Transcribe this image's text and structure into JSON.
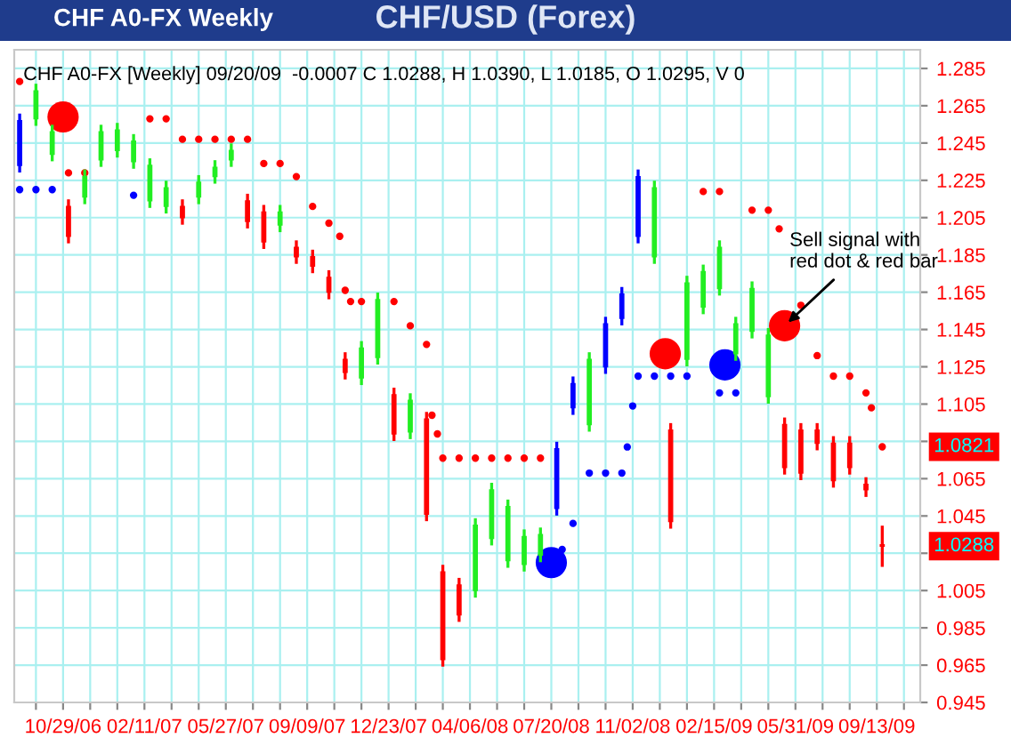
{
  "chart_data": {
    "type": "candlestick",
    "title": "CHF/USD (Forex)",
    "subtitle": "CHF A0-FX [Weekly] 09/20/09  -0.0007 C 1.0288, H 1.0390, L 1.0185, O 1.0295, V 0",
    "annotations": [
      "CHF A0-FX Weekly",
      {
        "text": "Sell signal with\nred dot & red bar",
        "x": "2009-05-17",
        "y": 1.147
      },
      {
        "text": "1.0821",
        "x": "2009-09-20",
        "y": 1.0821
      },
      {
        "text": "1.0288",
        "x": "2009-09-20",
        "y": 1.0288
      }
    ],
    "xlim": [
      "2006-08-27",
      "2009-11-08"
    ],
    "xticks": [
      {
        "value": "2006-09-24",
        "label": null
      },
      {
        "value": "2006-10-29",
        "label": "10/29/06"
      },
      {
        "value": "2006-12-03",
        "label": null
      },
      {
        "value": "2007-01-07",
        "label": null
      },
      {
        "value": "2007-02-11",
        "label": "02/11/07"
      },
      {
        "value": "2007-03-18",
        "label": null
      },
      {
        "value": "2007-04-22",
        "label": null
      },
      {
        "value": "2007-05-27",
        "label": "05/27/07"
      },
      {
        "value": "2007-07-01",
        "label": null
      },
      {
        "value": "2007-08-05",
        "label": null
      },
      {
        "value": "2007-09-09",
        "label": "09/09/07"
      },
      {
        "value": "2007-10-14",
        "label": null
      },
      {
        "value": "2007-11-18",
        "label": null
      },
      {
        "value": "2007-12-23",
        "label": "12/23/07"
      },
      {
        "value": "2008-01-27",
        "label": null
      },
      {
        "value": "2008-03-02",
        "label": null
      },
      {
        "value": "2008-04-06",
        "label": "04/06/08"
      },
      {
        "value": "2008-05-11",
        "label": null
      },
      {
        "value": "2008-06-15",
        "label": null
      },
      {
        "value": "2008-07-20",
        "label": "07/20/08"
      },
      {
        "value": "2008-08-24",
        "label": null
      },
      {
        "value": "2008-09-28",
        "label": null
      },
      {
        "value": "2008-11-02",
        "label": "11/02/08"
      },
      {
        "value": "2008-12-07",
        "label": null
      },
      {
        "value": "2009-01-11",
        "label": null
      },
      {
        "value": "2009-02-15",
        "label": "02/15/09"
      },
      {
        "value": "2009-03-22",
        "label": null
      },
      {
        "value": "2009-04-26",
        "label": null
      },
      {
        "value": "2009-05-31",
        "label": "05/31/09"
      },
      {
        "value": "2009-07-05",
        "label": null
      },
      {
        "value": "2009-08-09",
        "label": null
      },
      {
        "value": "2009-09-13",
        "label": "09/13/09"
      },
      {
        "value": "2009-10-18",
        "label": null
      }
    ],
    "ylim": [
      0.945,
      1.295
    ],
    "yticks": [
      0.945,
      0.965,
      0.985,
      1.005,
      {
        "value": 1.025,
        "label": null
      },
      1.045,
      1.065,
      {
        "value": 1.085,
        "label": null
      },
      1.105,
      1.125,
      1.145,
      1.165,
      1.185,
      1.205,
      1.225,
      1.245,
      1.265,
      1.285
    ],
    "grid": true,
    "series": [
      {
        "type": "candlestick",
        "color": "#ff0000",
        "x": [
          "2009-09-20",
          "2009-08-30",
          "2009-08-09",
          "2009-07-19",
          "2009-06-28",
          "2009-06-07",
          "2009-05-17",
          "2008-12-21",
          "2008-03-23",
          "2008-03-02",
          "2008-02-10",
          "2007-12-30",
          "2007-10-28",
          "2007-10-07",
          "2007-09-16",
          "2007-08-26",
          "2007-07-15",
          "2007-06-24",
          "2007-04-01",
          "2006-11-05"
        ],
        "ohlc": [
          [
            1.0295,
            1.039,
            1.0185,
            1.0288
          ],
          [
            1.062,
            1.065,
            1.056,
            1.059
          ],
          [
            1.084,
            1.087,
            1.068,
            1.071
          ],
          [
            1.084,
            1.087,
            1.061,
            1.064
          ],
          [
            1.091,
            1.094,
            1.081,
            1.084
          ],
          [
            1.091,
            1.094,
            1.065,
            1.068
          ],
          [
            1.094,
            1.097,
            1.068,
            1.071
          ],
          [
            1.091,
            1.094,
            1.039,
            1.042
          ],
          [
            1.008,
            1.011,
            0.989,
            0.992
          ],
          [
            1.015,
            1.018,
            0.965,
            0.968
          ],
          [
            1.097,
            1.1,
            1.043,
            1.046
          ],
          [
            1.11,
            1.113,
            1.086,
            1.089
          ],
          [
            1.129,
            1.132,
            1.119,
            1.122
          ],
          [
            1.173,
            1.176,
            1.162,
            1.165
          ],
          [
            1.184,
            1.187,
            1.176,
            1.179
          ],
          [
            1.189,
            1.192,
            1.181,
            1.184
          ],
          [
            1.208,
            1.211,
            1.189,
            1.192
          ],
          [
            1.214,
            1.217,
            1.2,
            1.203
          ],
          [
            1.211,
            1.214,
            1.202,
            1.205
          ],
          [
            1.211,
            1.214,
            1.192,
            1.195
          ]
        ]
      },
      {
        "type": "candlestick",
        "color": "#22ee22",
        "x": [
          "2009-04-26",
          "2009-04-05",
          "2009-03-15",
          "2009-02-22",
          "2009-02-01",
          "2009-01-11",
          "2008-11-30",
          "2008-09-07",
          "2008-07-06",
          "2008-06-15",
          "2008-05-25",
          "2008-05-04",
          "2008-04-13",
          "2008-01-20",
          "2007-12-09",
          "2007-11-18",
          "2007-08-05",
          "2007-06-03",
          "2007-05-13",
          "2007-04-22",
          "2007-03-11",
          "2007-02-18",
          "2007-01-28",
          "2007-01-07",
          "2006-12-17",
          "2006-11-26",
          "2006-10-15",
          "2006-09-24"
        ],
        "ohlc": [
          [
            1.109,
            1.145,
            1.106,
            1.142
          ],
          [
            1.144,
            1.17,
            1.141,
            1.167
          ],
          [
            1.132,
            1.151,
            1.129,
            1.148
          ],
          [
            1.167,
            1.192,
            1.164,
            1.189
          ],
          [
            1.157,
            1.179,
            1.154,
            1.176
          ],
          [
            1.129,
            1.173,
            1.126,
            1.17
          ],
          [
            1.184,
            1.224,
            1.181,
            1.221
          ],
          [
            1.094,
            1.132,
            1.091,
            1.129
          ],
          [
            1.024,
            1.038,
            1.021,
            1.035
          ],
          [
            1.019,
            1.037,
            1.016,
            1.034
          ],
          [
            1.021,
            1.053,
            1.018,
            1.05
          ],
          [
            1.033,
            1.062,
            1.03,
            1.059
          ],
          [
            1.005,
            1.043,
            1.002,
            1.04
          ],
          [
            1.09,
            1.11,
            1.087,
            1.107
          ],
          [
            1.13,
            1.164,
            1.127,
            1.161
          ],
          [
            1.119,
            1.138,
            1.116,
            1.135
          ],
          [
            1.201,
            1.211,
            1.198,
            1.208
          ],
          [
            1.236,
            1.244,
            1.233,
            1.241
          ],
          [
            1.227,
            1.235,
            1.224,
            1.232
          ],
          [
            1.216,
            1.227,
            1.213,
            1.224
          ],
          [
            1.211,
            1.224,
            1.208,
            1.221
          ],
          [
            1.214,
            1.236,
            1.211,
            1.233
          ],
          [
            1.235,
            1.249,
            1.232,
            1.246
          ],
          [
            1.241,
            1.255,
            1.238,
            1.252
          ],
          [
            1.236,
            1.254,
            1.233,
            1.251
          ],
          [
            1.216,
            1.23,
            1.213,
            1.227
          ],
          [
            1.239,
            1.254,
            1.236,
            1.251
          ],
          [
            1.258,
            1.276,
            1.255,
            1.273
          ]
        ]
      },
      {
        "type": "candlestick",
        "color": "#0000ff",
        "x": [
          "2008-11-09",
          "2008-10-19",
          "2008-09-28",
          "2008-08-17",
          "2008-07-27",
          "2006-09-03"
        ],
        "ohlc": [
          [
            1.195,
            1.23,
            1.192,
            1.227
          ],
          [
            1.151,
            1.167,
            1.148,
            1.164
          ],
          [
            1.125,
            1.151,
            1.122,
            1.148
          ],
          [
            1.103,
            1.119,
            1.1,
            1.116
          ],
          [
            1.049,
            1.084,
            1.046,
            1.081
          ],
          [
            1.233,
            1.26,
            1.23,
            1.257
          ]
        ]
      },
      {
        "type": "scatter",
        "color": "#ff0000",
        "marker": "circle",
        "x": [
          "2006-09-03",
          "2006-11-05",
          "2006-11-26",
          "2007-02-18",
          "2007-03-11",
          "2007-04-01",
          "2007-04-22",
          "2007-05-13",
          "2007-06-03",
          "2007-06-24",
          "2007-07-15",
          "2007-08-05",
          "2007-08-26",
          "2007-09-16",
          "2007-10-07",
          "2007-10-21",
          "2007-10-28",
          "2007-11-04",
          "2007-11-18",
          "2007-12-09",
          "2007-12-30",
          "2008-01-20",
          "2008-02-10",
          "2008-02-17",
          "2008-02-24",
          "2008-03-02",
          "2008-03-23",
          "2008-04-13",
          "2008-05-04",
          "2008-05-25",
          "2008-06-15",
          "2008-07-06",
          "2009-02-01",
          "2009-02-22",
          "2009-04-05",
          "2009-04-26",
          "2009-05-10",
          "2009-06-07",
          "2009-06-28",
          "2009-07-19",
          "2009-08-09",
          "2009-08-30",
          "2009-09-06",
          "2009-09-20"
        ],
        "values": [
          1.278,
          1.229,
          1.229,
          1.258,
          1.258,
          1.247,
          1.247,
          1.247,
          1.247,
          1.247,
          1.234,
          1.234,
          1.227,
          1.211,
          1.202,
          1.195,
          1.166,
          1.16,
          1.16,
          null,
          1.16,
          1.147,
          1.137,
          1.099,
          1.089,
          1.076,
          1.076,
          1.076,
          1.076,
          1.076,
          1.076,
          1.076,
          1.219,
          1.219,
          1.209,
          1.209,
          1.199,
          1.158,
          1.131,
          1.12,
          1.12,
          1.111,
          1.103,
          1.0821
        ]
      },
      {
        "type": "scatter",
        "color": "#0000ff",
        "marker": "circle",
        "x": [
          "2006-09-03",
          "2006-09-24",
          "2006-10-15",
          "2007-01-28",
          "2008-08-03",
          "2008-08-17",
          "2008-09-07",
          "2008-09-28",
          "2008-10-19",
          "2008-10-26",
          "2008-11-02",
          "2008-11-09",
          "2008-11-30",
          "2008-12-21",
          "2009-01-11",
          "2009-02-22",
          "2009-03-15"
        ],
        "values": [
          1.22,
          1.22,
          1.22,
          1.217,
          1.027,
          1.041,
          1.068,
          1.068,
          1.068,
          1.082,
          1.104,
          1.12,
          1.12,
          1.12,
          1.12,
          1.111,
          1.111
        ]
      },
      {
        "type": "bubble",
        "color": "#ff0000",
        "x": [
          "2006-10-29",
          "2008-12-14",
          "2009-05-17"
        ],
        "values": [
          1.259,
          1.132,
          1.147
        ],
        "sizes": [
          1,
          1,
          1
        ]
      },
      {
        "type": "bubble",
        "color": "#0000ff",
        "x": [
          "2008-07-20",
          "2009-03-01"
        ],
        "values": [
          1.02,
          1.126
        ],
        "sizes": [
          1,
          1
        ]
      }
    ]
  }
}
